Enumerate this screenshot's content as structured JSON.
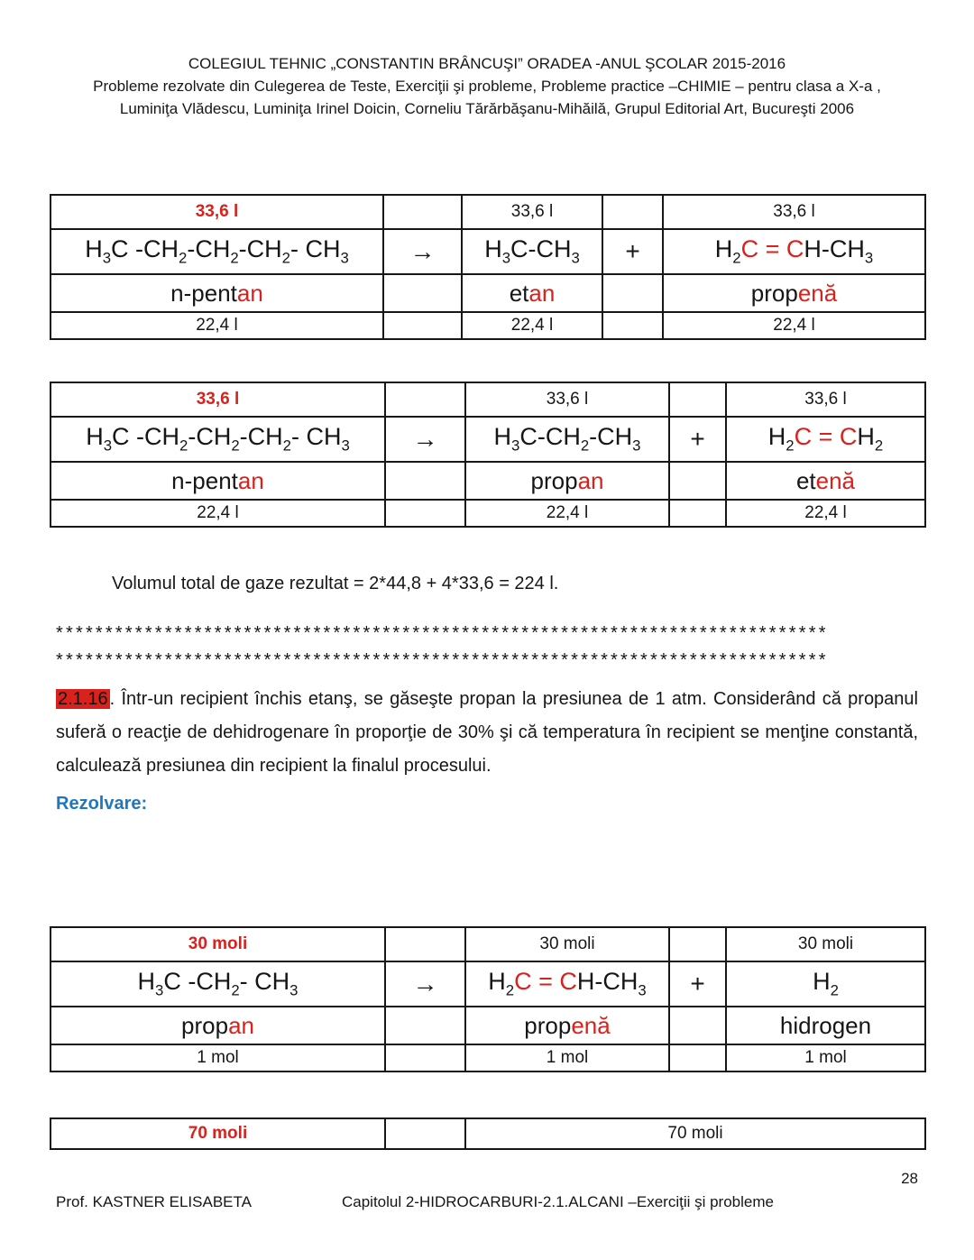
{
  "colors": {
    "red": "#da211c",
    "blue": "#1f78bd"
  },
  "header": {
    "lines": [
      "COLEGIUL TEHNIC „CONSTANTIN BRÂNCUŞI” ORADEA  -ANUL ŞCOLAR 2015-2016",
      "Probleme rezolvate din Culegerea de Teste, Exerciţii şi probleme, Probleme practice –CHIMIE – pentru clasa a X-a ,",
      "Luminiţa Vlădescu, Luminiţa Irinel Doicin, Corneliu Tărărbăşanu-Mihăilă, Grupul Editorial Art, Bucureşti 2006"
    ]
  },
  "tables": [
    {
      "id": "reaction-pentane-cracking-1",
      "col_roles": [
        "reactant",
        "arrow",
        "product1",
        "plus",
        "product2"
      ],
      "row_roles": [
        "volume-top",
        "formula",
        "name",
        "volume-bottom"
      ],
      "rows": [
        {
          "cells": [
            "33,6 l",
            "",
            "33,6 l",
            "",
            "33,6 l"
          ]
        },
        {
          "cells": [
            "H_3_C -CH_2_-CH_2_-CH_2_- CH_3_",
            "→",
            "H_3_C-CH_3_",
            "+",
            "H_2_[C = C]H-CH_3_"
          ]
        },
        {
          "cells": [
            "n-pent[an]",
            "",
            "et[an]",
            "",
            "prop[enă]"
          ]
        },
        {
          "cells": [
            "22,4 l",
            "",
            "22,4 l",
            "",
            "22,4 l"
          ]
        }
      ]
    },
    {
      "id": "reaction-pentane-cracking-2",
      "col_roles": [
        "reactant",
        "arrow",
        "product1",
        "plus",
        "product2"
      ],
      "row_roles": [
        "volume-top",
        "formula",
        "name",
        "volume-bottom"
      ],
      "rows": [
        {
          "cells": [
            "33,6 l",
            "",
            "33,6 l",
            "",
            "33,6 l"
          ]
        },
        {
          "cells": [
            "H_3_C -CH_2_-CH_2_-CH_2_- CH_3_",
            "→",
            "H_3_C-CH_2_-CH_3_",
            "+",
            "H_2_[C = C]H_2_"
          ]
        },
        {
          "cells": [
            "n-pent[an]",
            "",
            "prop[an]",
            "",
            "et[enă]"
          ]
        },
        {
          "cells": [
            "22,4 l",
            "",
            "22,4 l",
            "",
            "22,4 l"
          ]
        }
      ]
    },
    {
      "id": "reaction-propane-dehydrogenation",
      "col_roles": [
        "reactant",
        "arrow",
        "product1",
        "plus",
        "product2"
      ],
      "row_roles": [
        "moles-top",
        "formula",
        "name",
        "moles-bottom"
      ],
      "rows": [
        {
          "cells": [
            "30 moli",
            "",
            "30 moli",
            "",
            "30 moli"
          ]
        },
        {
          "cells": [
            "H_3_C -CH_2_- CH_3_",
            "→",
            "H_2_[C = C]H-CH_3_",
            "+",
            "H_2_"
          ]
        },
        {
          "cells": [
            "prop[an]",
            "",
            "prop[enă]",
            "",
            "hidrogen"
          ]
        },
        {
          "cells": [
            "1 mol",
            "",
            "1 mol",
            "",
            "1 mol"
          ]
        }
      ]
    },
    {
      "id": "totals-row",
      "col_roles": [
        "reactant",
        "arrow",
        "products"
      ],
      "row_roles": [
        "moles-total"
      ],
      "rows": [
        {
          "cells": [
            "70 moli",
            "",
            "70 moli"
          ]
        }
      ]
    }
  ],
  "solution_note": "Volumul total de gaze rezultat = 2*44,8 + 4*33,6 = 224 l.",
  "separator_line": "******************************************************************************",
  "problem": {
    "number": "2.1.16",
    "text": ". Într-un recipient închis etanş, se găseşte propan la presiunea de 1 atm. Considerând că propanul suferă o reacţie de dehidrogenare în proporţie de 30% şi că temperatura în recipient se menţine constantă, calculează presiunea din recipient la finalul procesului."
  },
  "rezolvare_label": "Rezolvare:",
  "footer": {
    "page_number": "28",
    "left": "Prof. KASTNER ELISABETA",
    "center": "Capitolul 2-HIDROCARBURI-2.1.ALCANI –Exerciţii şi probleme"
  }
}
